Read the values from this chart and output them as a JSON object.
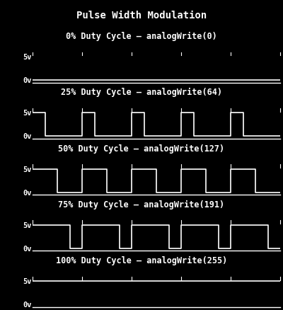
{
  "title": "Pulse Width Modulation",
  "background_color": "#000000",
  "line_color": "#ffffff",
  "text_color": "#ffffff",
  "subplots": [
    {
      "label": "0% Duty Cycle – analogWrite(0)",
      "duty": 0.0
    },
    {
      "label": "25% Duty Cycle – analogWrite(64)",
      "duty": 0.25
    },
    {
      "label": "50% Duty Cycle – analogWrite(127)",
      "duty": 0.5
    },
    {
      "label": "75% Duty Cycle – analogWrite(191)",
      "duty": 0.75
    },
    {
      "label": "100% Duty Cycle – analogWrite(255)",
      "duty": 1.0
    }
  ],
  "num_cycles": 5,
  "ytick_labels": [
    "0v",
    "5v"
  ],
  "title_fontsize": 10,
  "label_fontsize": 8.5,
  "tick_fontsize": 7.5
}
